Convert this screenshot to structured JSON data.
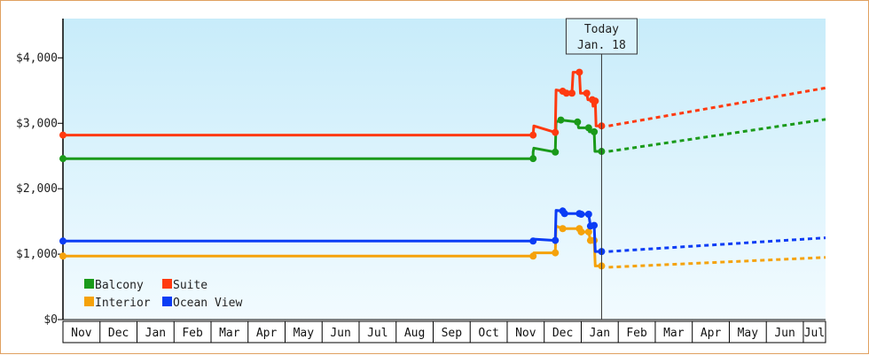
{
  "chart_data": {
    "type": "line",
    "title": "",
    "xlabel": "",
    "ylabel": "",
    "ylim": [
      0,
      4600
    ],
    "y_ticks": [
      0,
      1000,
      2000,
      3000,
      4000
    ],
    "y_tick_labels": [
      "$0",
      "$1,000",
      "$2,000",
      "$3,000",
      "$4,000"
    ],
    "x_tick_labels": [
      "Nov",
      "Dec",
      "Jan",
      "Feb",
      "Mar",
      "Apr",
      "May",
      "Jun",
      "Jul",
      "Aug",
      "Sep",
      "Oct",
      "Nov",
      "Dec",
      "Jan",
      "Feb",
      "Mar",
      "Apr",
      "May",
      "Jun",
      "Jul"
    ],
    "x_range_months": [
      0,
      20.6
    ],
    "background_gradient": [
      "#c8ecfa",
      "#f2fbff"
    ],
    "today": {
      "line1": "Today",
      "line2": "Jan. 18",
      "x": 14.55
    },
    "legend_position": "bottom-left",
    "series": [
      {
        "name": "Balcony",
        "color": "#1a9a1a",
        "points": [
          [
            0,
            2460
          ],
          [
            12.7,
            2460
          ],
          [
            12.7,
            2560
          ],
          [
            12.72,
            2620
          ],
          [
            13.3,
            2560
          ],
          [
            13.32,
            3020
          ],
          [
            13.45,
            3050
          ],
          [
            13.9,
            3020
          ],
          [
            13.93,
            2930
          ],
          [
            14.2,
            2930
          ],
          [
            14.22,
            2870
          ],
          [
            14.35,
            2870
          ],
          [
            14.37,
            2570
          ],
          [
            14.55,
            2570
          ]
        ],
        "forecast": [
          [
            14.55,
            2570
          ],
          [
            20.6,
            3060
          ]
        ]
      },
      {
        "name": "Suite",
        "color": "#ff3a10",
        "points": [
          [
            0,
            2820
          ],
          [
            12.7,
            2820
          ],
          [
            12.72,
            2960
          ],
          [
            13.3,
            2860
          ],
          [
            13.32,
            3510
          ],
          [
            13.5,
            3490
          ],
          [
            13.6,
            3460
          ],
          [
            13.75,
            3460
          ],
          [
            13.78,
            3780
          ],
          [
            13.95,
            3780
          ],
          [
            13.98,
            3460
          ],
          [
            14.15,
            3460
          ],
          [
            14.18,
            3360
          ],
          [
            14.3,
            3360
          ],
          [
            14.32,
            3260
          ],
          [
            14.38,
            3340
          ],
          [
            14.4,
            2960
          ],
          [
            14.55,
            2960
          ]
        ],
        "forecast": [
          [
            14.55,
            2960
          ],
          [
            20.6,
            3540
          ]
        ]
      },
      {
        "name": "Interior",
        "color": "#f5a20a",
        "points": [
          [
            0,
            970
          ],
          [
            12.7,
            970
          ],
          [
            12.72,
            1020
          ],
          [
            13.3,
            1020
          ],
          [
            13.32,
            1430
          ],
          [
            13.5,
            1390
          ],
          [
            13.95,
            1390
          ],
          [
            14.0,
            1340
          ],
          [
            14.2,
            1340
          ],
          [
            14.25,
            1210
          ],
          [
            14.35,
            1210
          ],
          [
            14.38,
            820
          ],
          [
            14.55,
            820
          ]
        ],
        "forecast": [
          [
            14.55,
            800
          ],
          [
            20.6,
            950
          ]
        ]
      },
      {
        "name": "Ocean View",
        "color": "#0a3cf5",
        "points": [
          [
            0,
            1200
          ],
          [
            12.7,
            1200
          ],
          [
            12.72,
            1230
          ],
          [
            13.3,
            1210
          ],
          [
            13.32,
            1670
          ],
          [
            13.5,
            1660
          ],
          [
            13.55,
            1620
          ],
          [
            13.95,
            1620
          ],
          [
            14.0,
            1610
          ],
          [
            14.2,
            1610
          ],
          [
            14.25,
            1430
          ],
          [
            14.35,
            1440
          ],
          [
            14.38,
            1040
          ],
          [
            14.55,
            1040
          ]
        ],
        "forecast": [
          [
            14.55,
            1040
          ],
          [
            20.6,
            1250
          ]
        ]
      }
    ]
  }
}
